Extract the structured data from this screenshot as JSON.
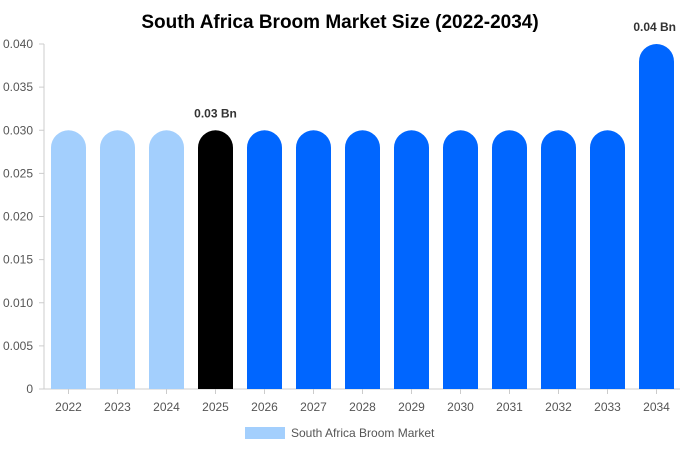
{
  "chart_data": {
    "type": "bar",
    "title": "South Africa Broom Market Size (2022-2034)",
    "xlabel": "",
    "ylabel": "",
    "categories": [
      "2022",
      "2023",
      "2024",
      "2025",
      "2026",
      "2027",
      "2028",
      "2029",
      "2030",
      "2031",
      "2032",
      "2033",
      "2034"
    ],
    "series": [
      {
        "name": "South Africa Broom Market",
        "values": [
          0.03,
          0.03,
          0.03,
          0.03,
          0.03,
          0.03,
          0.03,
          0.03,
          0.03,
          0.03,
          0.03,
          0.03,
          0.04
        ]
      }
    ],
    "ylim": [
      0,
      0.04
    ],
    "yticks": [
      "0",
      "0.005",
      "0.010",
      "0.015",
      "0.020",
      "0.025",
      "0.030",
      "0.035",
      "0.040"
    ],
    "data_labels": [
      {
        "index": 3,
        "text": "0.03 Bn"
      },
      {
        "index": 12,
        "text": "0.04 Bn"
      }
    ],
    "bar_colors": [
      "#a3cffd",
      "#a3cffd",
      "#a3cffd",
      "#000000",
      "#0066ff",
      "#0066ff",
      "#0066ff",
      "#0066ff",
      "#0066ff",
      "#0066ff",
      "#0066ff",
      "#0066ff",
      "#0066ff"
    ],
    "legend": {
      "position": "bottom",
      "color": "#a3cffd"
    },
    "grid": false
  }
}
